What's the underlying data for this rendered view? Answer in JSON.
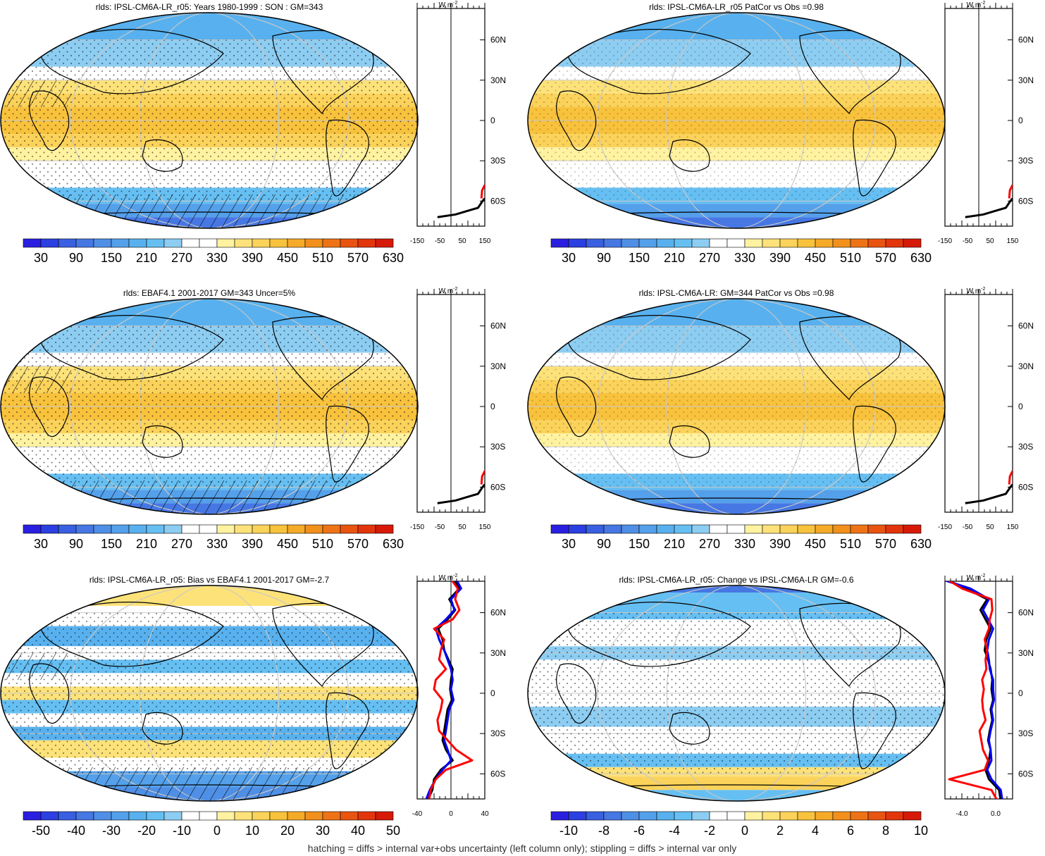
{
  "footer": "hatching = diffs > internal var+obs uncertainty (left column only); stippling = diffs > internal var only",
  "lat_labels": [
    "60N",
    "30N",
    "0",
    "30S",
    "60S"
  ],
  "zonal_units": "W m",
  "zonal_units_exp": "-2",
  "colors": {
    "abs_palette": [
      "#2a1fe0",
      "#2c3fe0",
      "#3a5fe0",
      "#4677e3",
      "#4f8fe6",
      "#54a0ea",
      "#58b1ee",
      "#66bff2",
      "#8dcdf2",
      "#ffffff",
      "#ffffff",
      "#fff2a0",
      "#fde27a",
      "#fbd25a",
      "#f8c23c",
      "#f5aa28",
      "#f2901c",
      "#ee7316",
      "#e95410",
      "#e2350c",
      "#d71a08"
    ],
    "diff_palette": [
      "#2a1fe0",
      "#2c3fe0",
      "#3a5fe0",
      "#4677e3",
      "#4f8fe6",
      "#54a0ea",
      "#58b1ee",
      "#66bff2",
      "#8dcdf2",
      "#ffffff",
      "#ffffff",
      "#fff2a0",
      "#fde27a",
      "#fbd25a",
      "#f8c23c",
      "#f5aa28",
      "#f2901c",
      "#ee7316",
      "#e95410",
      "#e2350c",
      "#d71a08"
    ],
    "model": "#000000",
    "obs": "#ff0000",
    "ref": "#0000ff"
  },
  "chart_data": [
    {
      "type": "heatmap",
      "panel": "top-left",
      "title": "rlds: IPSL-CM6A-LR_r05: Years 1980-1999 : SON : GM=343",
      "colorbar_ticks": [
        "30",
        "90",
        "150",
        "210",
        "270",
        "330",
        "390",
        "450",
        "510",
        "570",
        "630"
      ],
      "zonal_xticks": [
        "-150",
        "-50",
        "50",
        "150"
      ],
      "zonal_xlim": [
        -150,
        150
      ],
      "zonal_lat": [
        85,
        75,
        65,
        55,
        45,
        35,
        25,
        15,
        5,
        -5,
        -15,
        -25,
        -35,
        -45,
        -55,
        -65,
        -75,
        -85
      ],
      "zonal_series": [
        {
          "color": "black",
          "values": [
            -152,
            -150,
            -150,
            -150,
            -150,
            -150,
            -150,
            -150,
            -150,
            -150,
            -150,
            -150,
            -150,
            -150,
            -150,
            -150,
            -150,
            -150
          ]
        }
      ],
      "zonal_tail": {
        "black": [
          [
            150,
            -58
          ],
          [
            140,
            -60
          ],
          [
            120,
            -65
          ],
          [
            80,
            -67
          ],
          [
            20,
            -70
          ],
          [
            -60,
            -72
          ]
        ],
        "red": [
          [
            150,
            -48
          ],
          [
            138,
            -52
          ],
          [
            135,
            -58
          ]
        ]
      }
    },
    {
      "type": "heatmap",
      "panel": "top-right",
      "title": "rlds: IPSL-CM6A-LR_r05 PatCor vs Obs =0.98",
      "colorbar_ticks": [
        "30",
        "90",
        "150",
        "210",
        "270",
        "330",
        "390",
        "450",
        "510",
        "570",
        "630"
      ],
      "zonal_xticks": [
        "-150",
        "-50",
        "50",
        "150"
      ],
      "zonal_xlim": [
        -150,
        150
      ],
      "zonal_tail": {
        "black": [
          [
            150,
            -58
          ],
          [
            140,
            -60
          ],
          [
            120,
            -65
          ],
          [
            80,
            -67
          ],
          [
            20,
            -70
          ],
          [
            -60,
            -72
          ]
        ],
        "red": [
          [
            150,
            -48
          ],
          [
            138,
            -52
          ],
          [
            135,
            -58
          ]
        ]
      }
    },
    {
      "type": "heatmap",
      "panel": "middle-left",
      "title": "rlds: EBAF4.1 2001-2017 GM=343 Uncer=5%",
      "colorbar_ticks": [
        "30",
        "90",
        "150",
        "210",
        "270",
        "330",
        "390",
        "450",
        "510",
        "570",
        "630"
      ],
      "zonal_xticks": [
        "-150",
        "-50",
        "50",
        "150"
      ],
      "zonal_xlim": [
        -150,
        150
      ],
      "zonal_tail": {
        "black": [
          [
            150,
            -58
          ],
          [
            140,
            -60
          ],
          [
            120,
            -65
          ],
          [
            80,
            -67
          ],
          [
            20,
            -70
          ],
          [
            -60,
            -72
          ]
        ],
        "red": [
          [
            150,
            -48
          ],
          [
            138,
            -52
          ],
          [
            135,
            -58
          ]
        ]
      }
    },
    {
      "type": "heatmap",
      "panel": "middle-right",
      "title": "rlds: IPSL-CM6A-LR: GM=344 PatCor vs Obs =0.98",
      "colorbar_ticks": [
        "30",
        "90",
        "150",
        "210",
        "270",
        "330",
        "390",
        "450",
        "510",
        "570",
        "630"
      ],
      "zonal_xticks": [
        "-150",
        "-50",
        "50",
        "150"
      ],
      "zonal_xlim": [
        -150,
        150
      ],
      "zonal_tail": {
        "black": [
          [
            150,
            -58
          ],
          [
            140,
            -60
          ],
          [
            120,
            -65
          ],
          [
            80,
            -67
          ],
          [
            20,
            -70
          ],
          [
            -60,
            -72
          ]
        ],
        "red": [
          [
            150,
            -48
          ],
          [
            138,
            -52
          ],
          [
            135,
            -58
          ]
        ]
      }
    },
    {
      "type": "heatmap",
      "panel": "bottom-left",
      "title": "rlds: IPSL-CM6A-LR_r05: Bias vs EBAF4.1 2001-2017  GM=-2.7",
      "colorbar_ticks": [
        "-50",
        "-40",
        "-30",
        "-20",
        "-10",
        "0",
        "10",
        "20",
        "30",
        "40",
        "50"
      ],
      "zonal_xticks": [
        "-40",
        "0",
        "40"
      ],
      "zonal_xlim": [
        -40,
        40
      ],
      "zonal_lat": [
        85,
        78,
        70,
        62,
        55,
        48,
        40,
        32,
        25,
        18,
        10,
        3,
        -5,
        -12,
        -20,
        -28,
        -35,
        -42,
        -50,
        -57,
        -64,
        -72,
        -80,
        -87
      ],
      "zonal_series": [
        {
          "name": "",
          "color": "black",
          "values": [
            3,
            10,
            -2,
            5,
            -4,
            -15,
            -10,
            -8,
            -3,
            2,
            0,
            -1,
            1,
            -4,
            -6,
            -8,
            -10,
            -6,
            2,
            -12,
            -20,
            -22,
            -28,
            -32
          ]
        },
        {
          "name": "",
          "color": "blue",
          "values": [
            6,
            12,
            0,
            4,
            -6,
            -18,
            -14,
            -8,
            -4,
            0,
            2,
            0,
            3,
            -2,
            -4,
            -6,
            -8,
            -4,
            0,
            -10,
            -18,
            -25,
            -30,
            -34
          ]
        },
        {
          "name": "",
          "color": "red",
          "values": [
            0,
            8,
            5,
            10,
            2,
            -20,
            -8,
            -12,
            -14,
            -6,
            -18,
            -20,
            -10,
            -12,
            -16,
            -14,
            -4,
            6,
            25,
            -6,
            -18,
            -24,
            -26,
            -28
          ]
        }
      ]
    },
    {
      "type": "heatmap",
      "panel": "bottom-right",
      "title": "rlds: IPSL-CM6A-LR_r05: Change vs IPSL-CM6A-LR GM=-0.6",
      "colorbar_ticks": [
        "-10",
        "-8",
        "-6",
        "-4",
        "-2",
        "0",
        "2",
        "4",
        "6",
        "8",
        "10"
      ],
      "zonal_xticks": [
        "-4.0",
        "0.0"
      ],
      "zonal_xlim": [
        -6,
        2
      ],
      "zonal_lat": [
        85,
        78,
        70,
        62,
        55,
        48,
        40,
        32,
        25,
        18,
        10,
        3,
        -5,
        -12,
        -20,
        -28,
        -35,
        -42,
        -50,
        -57,
        -64,
        -72,
        -80,
        -87
      ],
      "zonal_series": [
        {
          "name": "",
          "color": "black",
          "values": [
            -6.0,
            -3.5,
            -1.0,
            -1.8,
            -1.2,
            -0.6,
            -1.1,
            -1.3,
            -0.9,
            -0.6,
            -0.4,
            -0.5,
            -0.3,
            -0.6,
            -0.4,
            -0.7,
            -0.9,
            -0.6,
            -0.8,
            -1.2,
            -0.8,
            0.4,
            0.6,
            0.1
          ]
        },
        {
          "name": "",
          "color": "blue",
          "values": [
            -6.5,
            -3.0,
            -0.8,
            -1.5,
            -0.9,
            -0.3,
            -0.8,
            -1.0,
            -0.8,
            -0.7,
            -0.3,
            -0.3,
            -0.2,
            -0.5,
            -0.3,
            -0.6,
            -0.8,
            -0.6,
            -0.5,
            -1.0,
            -0.5,
            0.6,
            0.8,
            0.2
          ]
        },
        {
          "name": "",
          "color": "red",
          "values": [
            -5.8,
            -4.0,
            -0.5,
            -0.4,
            -0.7,
            -0.8,
            -1.3,
            -1.0,
            -1.2,
            -1.1,
            -1.6,
            -1.4,
            -1.6,
            -1.5,
            -1.2,
            -1.9,
            -1.7,
            -1.5,
            -0.9,
            -1.3,
            -5.5,
            -0.5,
            0.2,
            0.0
          ]
        }
      ]
    }
  ]
}
